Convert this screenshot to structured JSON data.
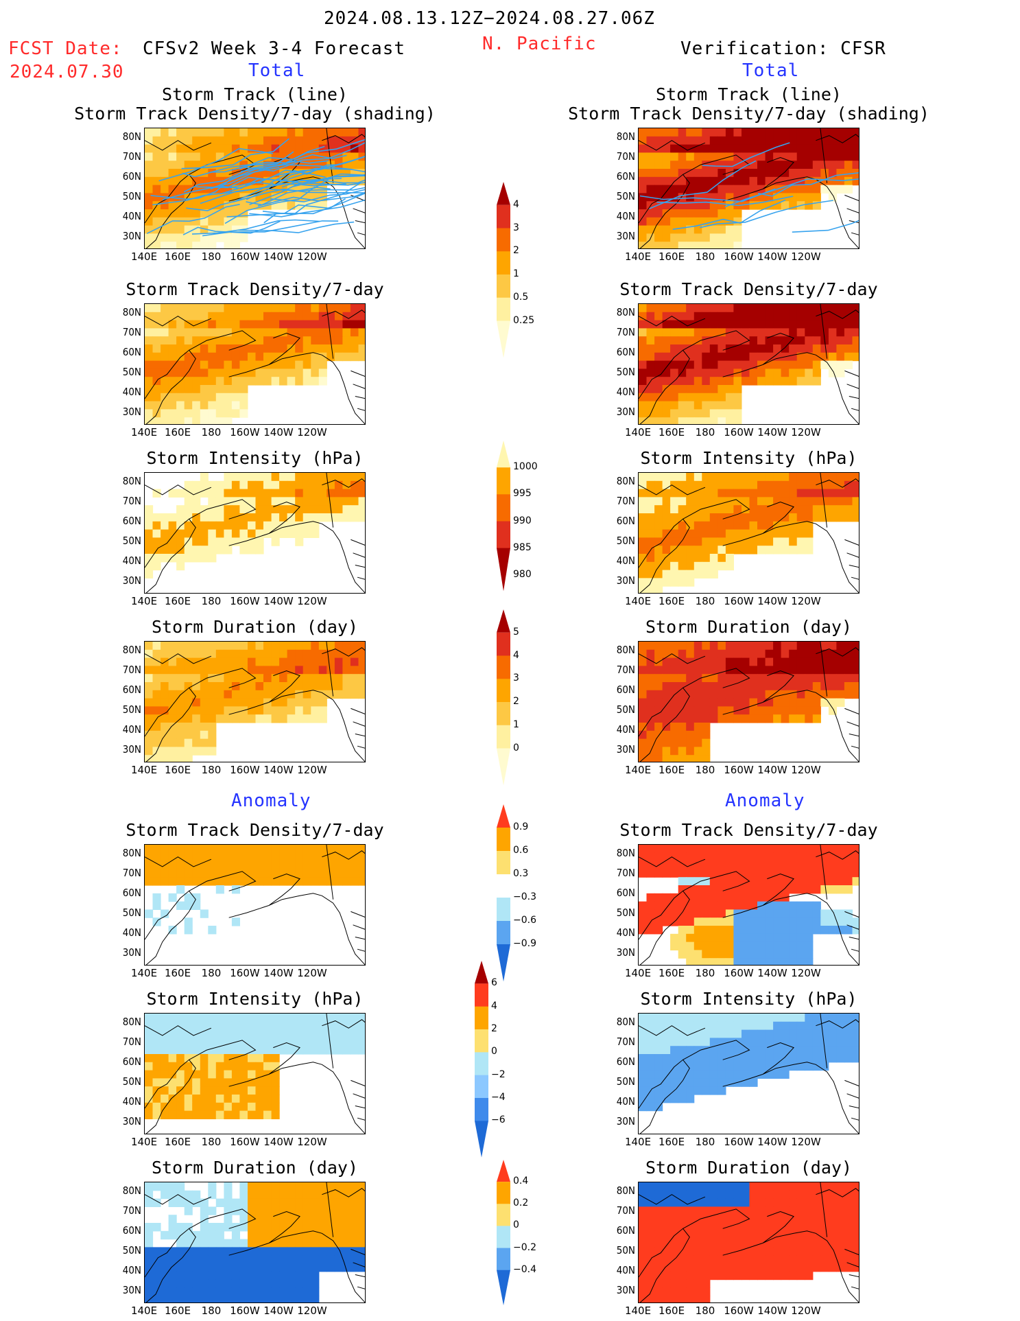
{
  "header": {
    "date_range": "2024.08.13.12Z−2024.08.27.06Z",
    "fcst_label": "FCST Date:",
    "fcst_date": "2024.07.30",
    "forecast_title": "CFSv2 Week 3-4 Forecast",
    "region": "N. Pacific",
    "verification_title": "Verification: CFSR"
  },
  "sections": {
    "total_label": "Total",
    "anomaly_label": "Anomaly"
  },
  "panel_titles": {
    "track_line": "Storm Track (line)",
    "track_shading": "Storm Track Density/7-day (shading)",
    "density": "Storm Track Density/7-day",
    "intensity": "Storm Intensity (hPa)",
    "duration": "Storm Duration (day)"
  },
  "axes": {
    "lat_ticks": [
      "80N",
      "70N",
      "60N",
      "50N",
      "40N",
      "30N"
    ],
    "lon_ticks": [
      "140E",
      "160E",
      "180",
      "160W",
      "140W",
      "120W"
    ]
  },
  "colorbars": {
    "density": {
      "labels": [
        "4",
        "3",
        "2",
        "1",
        "0.5",
        "0.25"
      ],
      "colors": [
        "#a50000",
        "#e0301e",
        "#f76b00",
        "#fea500",
        "#fdc844",
        "#fff0a0",
        "#fffbd0"
      ]
    },
    "intensity": {
      "labels": [
        "1000",
        "995",
        "990",
        "985",
        "980"
      ],
      "colors": [
        "#fff6b0",
        "#fea500",
        "#f76b00",
        "#e0301e",
        "#a50000"
      ]
    },
    "duration": {
      "labels": [
        "5",
        "4",
        "3",
        "2",
        "1",
        "0"
      ],
      "colors": [
        "#a50000",
        "#e0301e",
        "#f76b00",
        "#fea500",
        "#fdc844",
        "#fff0a0",
        "#fffbd0"
      ]
    },
    "density_anom": {
      "labels": [
        "0.9",
        "0.6",
        "0.3",
        "−0.3",
        "−0.6",
        "−0.9"
      ],
      "colors": [
        "#ff3c1e",
        "#fea500",
        "#fde070",
        "#ffffff",
        "#b0e6f6",
        "#5ba5f0",
        "#1e6ad6"
      ]
    },
    "intensity_anom": {
      "labels": [
        "6",
        "4",
        "2",
        "0",
        "−2",
        "−4",
        "−6"
      ],
      "colors": [
        "#a50000",
        "#ff3c1e",
        "#fea500",
        "#fde070",
        "#b0e6f6",
        "#8cc8ff",
        "#3f8aeb",
        "#1e6ad6"
      ]
    },
    "duration_anom": {
      "labels": [
        "0.4",
        "0.2",
        "0",
        "−0.2",
        "−0.4"
      ],
      "colors": [
        "#ff3c1e",
        "#fea500",
        "#fde070",
        "#b0e6f6",
        "#5ba5f0",
        "#1e6ad6"
      ]
    }
  }
}
